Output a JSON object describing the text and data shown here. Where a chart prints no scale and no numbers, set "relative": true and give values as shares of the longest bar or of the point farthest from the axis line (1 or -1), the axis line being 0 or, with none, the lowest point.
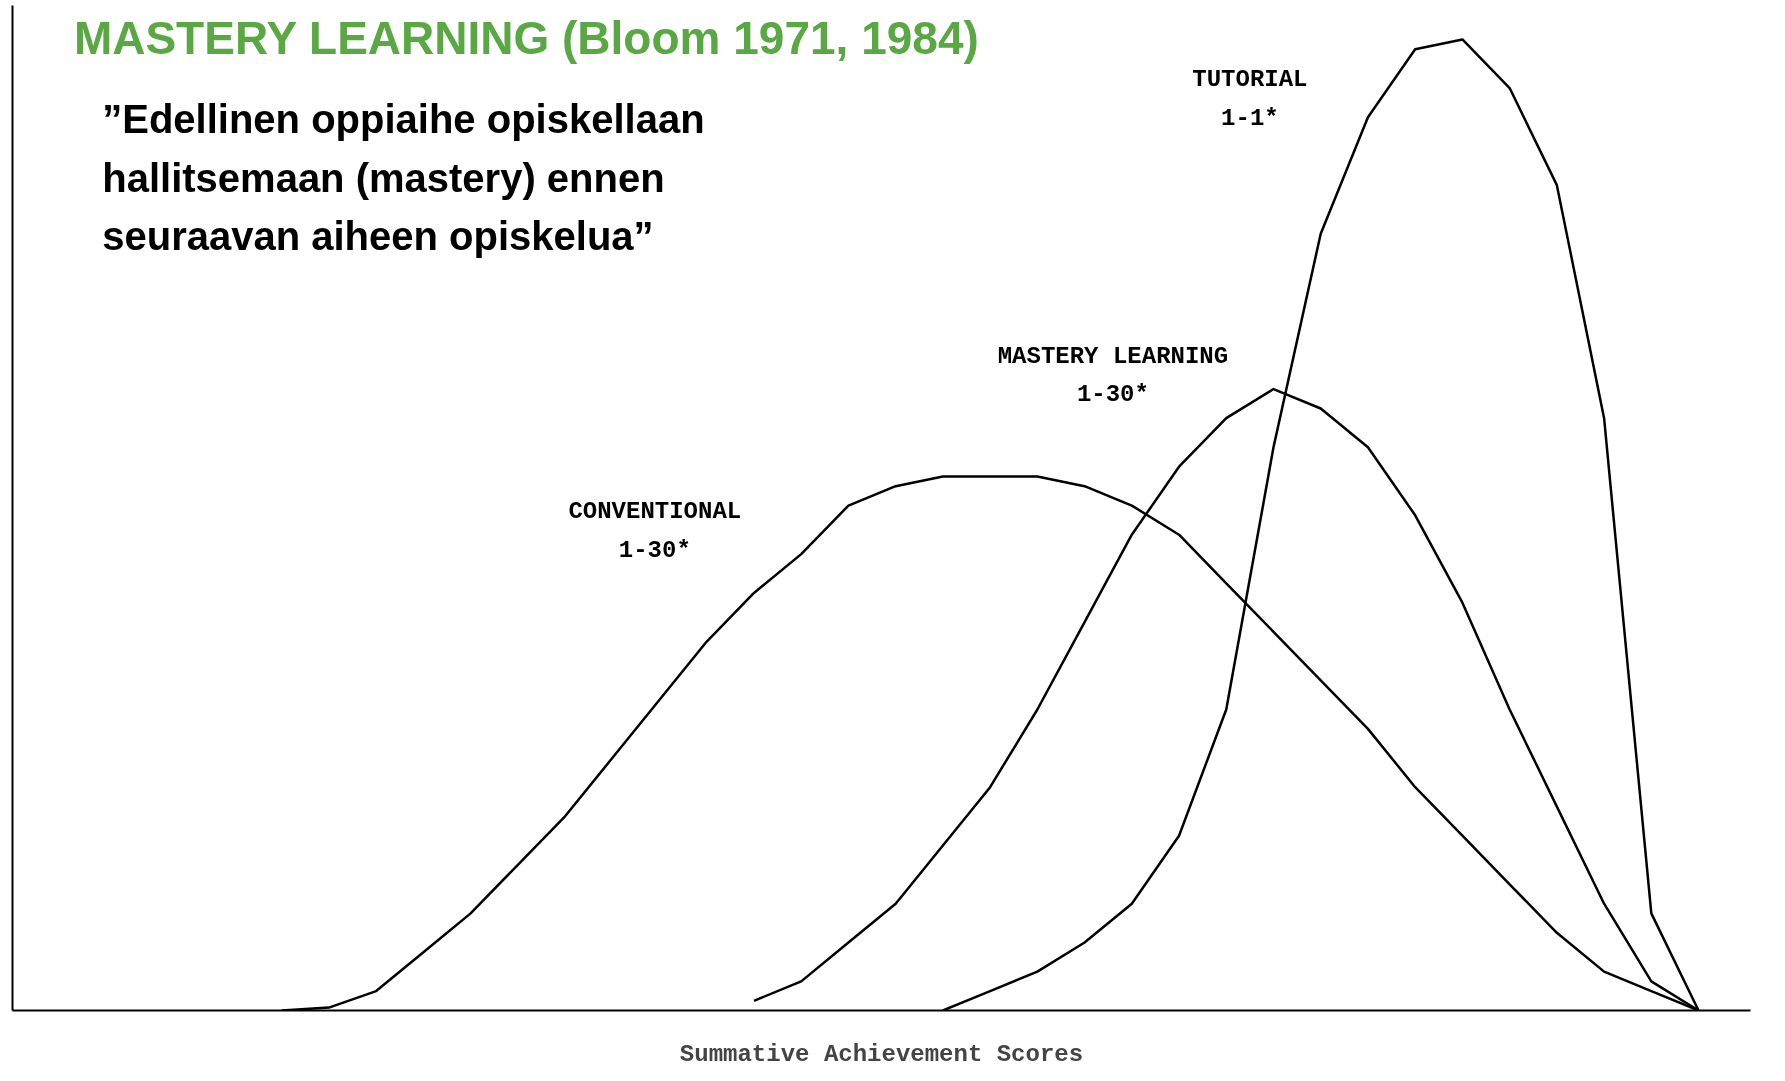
{
  "chart_data": {
    "type": "line",
    "title": "MASTERY LEARNING (Bloom 1971, 1984)",
    "subtitle": "”Edellinen oppiaihe opiskellaan\nhallitsemaan (mastery) ennen\nseuraavan aiheen opiskelua”",
    "xlabel": "Summative Achievement Scores",
    "relative": true,
    "categories": [
      null,
      null,
      null,
      null,
      null,
      null,
      null,
      null,
      null,
      null,
      null,
      null,
      null,
      null,
      null,
      null,
      null,
      null,
      null,
      null,
      null,
      null,
      null,
      null,
      null,
      null,
      null,
      null,
      null,
      null,
      null
    ],
    "series": [
      {
        "name": "CONVENTIONAL\n1-30*",
        "color": "#000000",
        "values": [
          0,
          0.003,
          0.02,
          0.06,
          0.1,
          0.15,
          0.2,
          0.26,
          0.32,
          0.38,
          0.43,
          0.47,
          0.52,
          0.54,
          0.55,
          0.55,
          0.55,
          0.54,
          0.52,
          0.49,
          0.44,
          0.39,
          0.34,
          0.29,
          0.23,
          0.18,
          0.13,
          0.08,
          0.04,
          0.02,
          0
        ]
      },
      {
        "name": "MASTERY LEARNING\n1-30*",
        "color": "#000000",
        "values": [
          null,
          null,
          null,
          null,
          null,
          null,
          null,
          null,
          null,
          null,
          0.01,
          0.03,
          0.07,
          0.11,
          0.17,
          0.23,
          0.31,
          0.4,
          0.49,
          0.56,
          0.61,
          0.64,
          0.62,
          0.58,
          0.51,
          0.42,
          0.31,
          0.21,
          0.11,
          0.03,
          0
        ]
      },
      {
        "name": "TUTORIAL\n1-1*",
        "color": "#000000",
        "values": [
          null,
          null,
          null,
          null,
          null,
          null,
          null,
          null,
          null,
          null,
          null,
          null,
          null,
          null,
          0,
          0.02,
          0.04,
          0.07,
          0.11,
          0.18,
          0.31,
          0.58,
          0.8,
          0.92,
          0.99,
          1.0,
          0.95,
          0.85,
          0.61,
          0.1,
          0
        ]
      }
    ]
  }
}
